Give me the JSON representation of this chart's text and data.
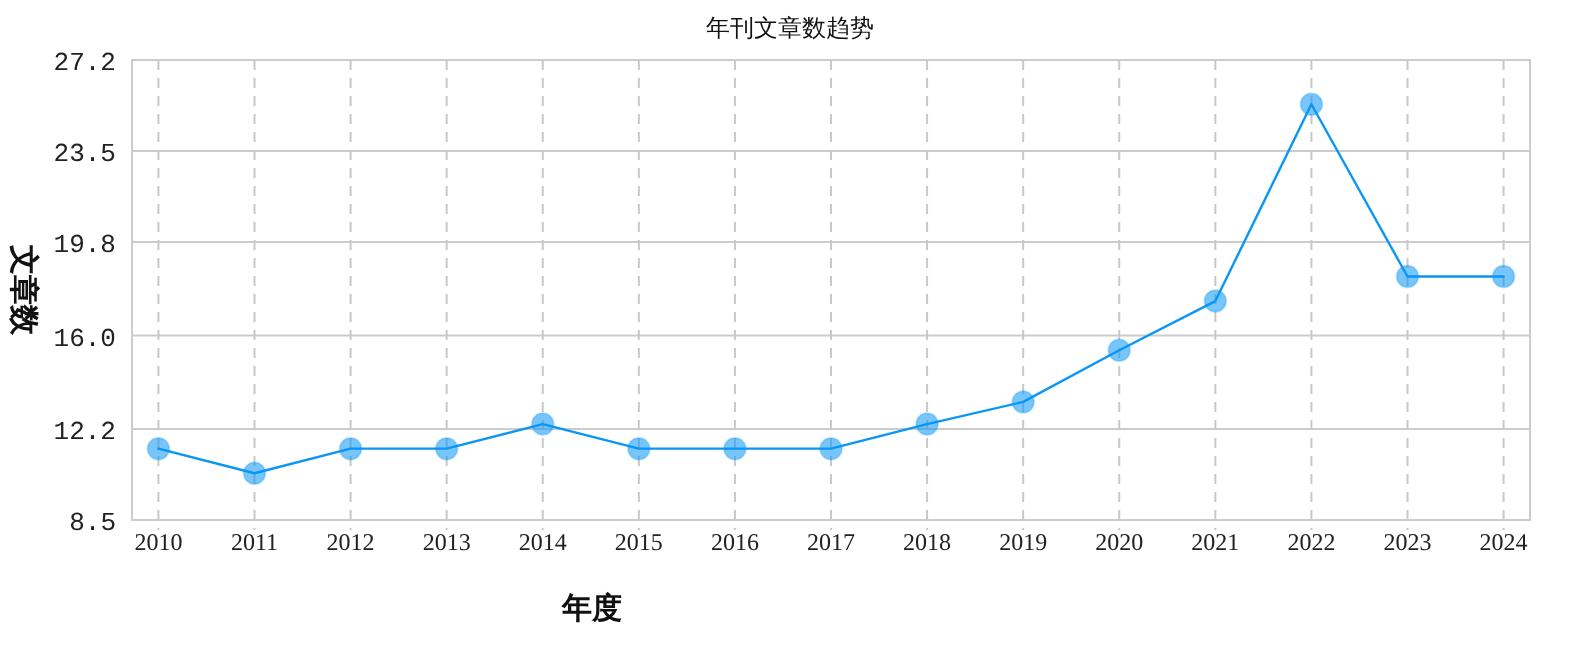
{
  "chart_data": {
    "type": "line",
    "title": "年刊文章数趋势",
    "xlabel": "年度",
    "ylabel": "文章数",
    "categories": [
      "2010",
      "2011",
      "2012",
      "2013",
      "2014",
      "2015",
      "2016",
      "2017",
      "2018",
      "2019",
      "2020",
      "2021",
      "2022",
      "2023",
      "2024"
    ],
    "series": [
      {
        "color": "#0a96f5",
        "values": [
          11.4,
          10.4,
          11.4,
          11.4,
          12.4,
          11.4,
          11.4,
          11.4,
          12.4,
          13.3,
          15.4,
          17.4,
          25.4,
          18.4,
          18.4
        ]
      }
    ],
    "ylim": [
      8.5,
      27.2
    ],
    "yticks": [
      8.5,
      12.2,
      {
        "value": 16,
        "label": "16.0"
      },
      19.8,
      23.5,
      27.2
    ],
    "grid": true,
    "marker": "circle",
    "line_style": "solid"
  }
}
